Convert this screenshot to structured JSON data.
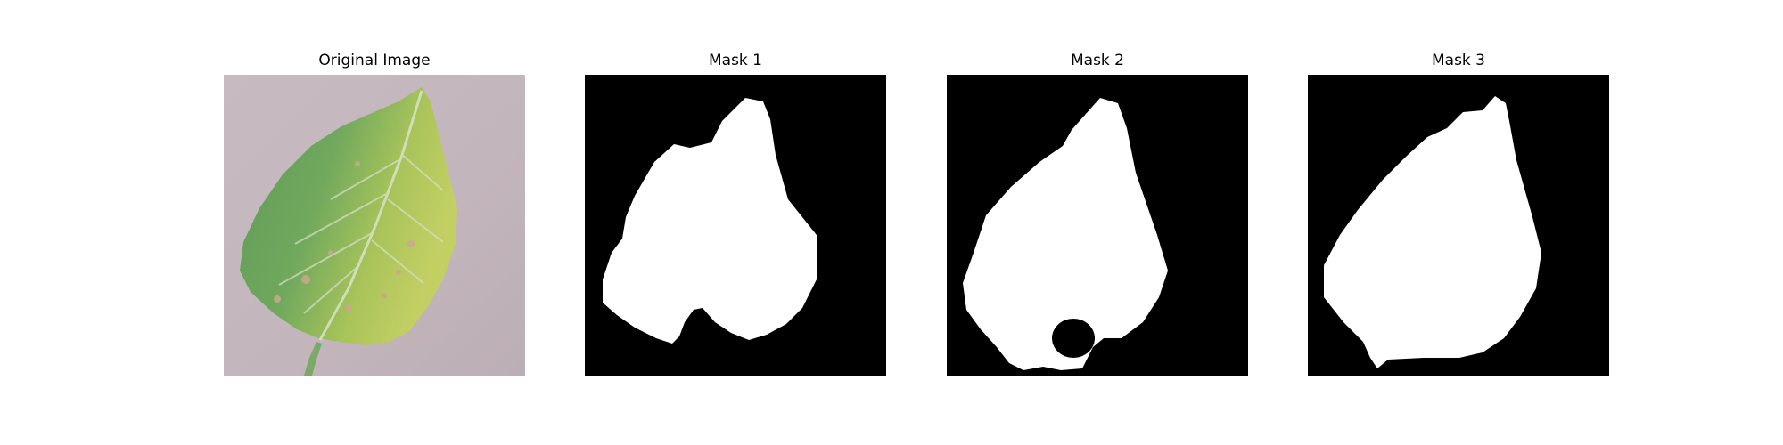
{
  "panels": [
    {
      "title": "Original Image"
    },
    {
      "title": "Mask 1"
    },
    {
      "title": "Mask 2"
    },
    {
      "title": "Mask 3"
    }
  ],
  "colors": {
    "background_paper": "#c3b6bc",
    "leaf_green": "#6fa35a",
    "leaf_yellow": "#b9c95b",
    "mask_foreground": "#ffffff",
    "mask_background": "#000000"
  }
}
